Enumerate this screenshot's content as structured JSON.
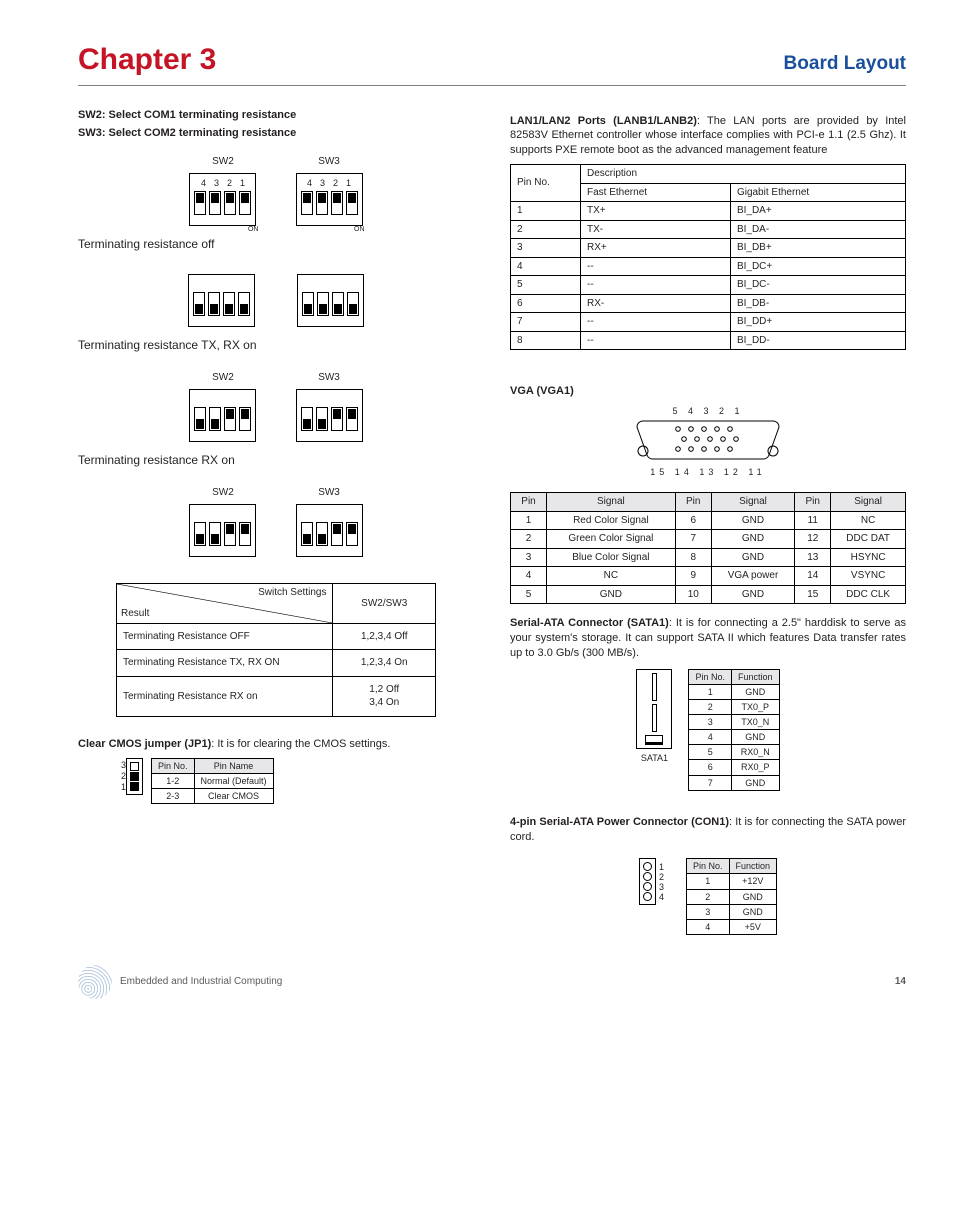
{
  "header": {
    "chapter": "Chapter 3",
    "section": "Board Layout"
  },
  "left": {
    "sw2_heading": "SW2:  Select COM1 terminating resistance",
    "sw3_heading": "SW3:  Select COM2 terminating resistance",
    "sw2_label": "SW2",
    "sw3_label": "SW3",
    "dip_numbers": [
      "4",
      "3",
      "2",
      "1"
    ],
    "on_label": "ON",
    "states": {
      "all_off": {
        "title": "Terminating resistance off",
        "positions": [
          "off",
          "off",
          "off",
          "off"
        ]
      },
      "all_on": {
        "title": "Terminating resistance  TX, RX on",
        "positions": [
          "on",
          "on",
          "on",
          "on"
        ]
      },
      "rx_on": {
        "title": "Terminating resistance RX on",
        "positions": [
          "on",
          "on",
          "off",
          "off"
        ]
      }
    },
    "switch_table": {
      "header_left_top": "Switch Settings",
      "header_left_bottom": "Result",
      "header_right": "SW2/SW3",
      "rows": [
        {
          "label": "Terminating Resistance OFF",
          "val": "1,2,3,4 Off"
        },
        {
          "label": "Terminating Resistance TX, RX ON",
          "val": "1,2,3,4 On"
        },
        {
          "label": "Terminating Resistance RX on",
          "val": "1,2 Off\n3,4 On"
        }
      ]
    },
    "clear_cmos": {
      "text": "Clear CMOS jumper (JP1): It is for clearing the CMOS settings.",
      "bold_until": "Clear CMOS jumper (JP1)",
      "plain": ": It is for clearing the CMOS settings.",
      "nums": [
        "3",
        "2",
        "1"
      ],
      "table": {
        "headers": [
          "Pin No.",
          "Pin Name"
        ],
        "rows": [
          [
            "1-2",
            "Normal (Default)"
          ],
          [
            "2-3",
            "Clear CMOS"
          ]
        ]
      }
    }
  },
  "right": {
    "lan": {
      "bold": "LAN1/LAN2 Ports (LANB1/LANB2)",
      "rest": ": The LAN ports are provided by Intel 82583V Ethernet controller whose interface complies with PCI-e 1.1 (2.5 Ghz). It supports PXE remote boot as the advanced management feature",
      "headers": [
        "Pin No.",
        "Description"
      ],
      "subheaders": [
        "Fast Ethernet",
        "Gigabit Ethernet"
      ],
      "rows": [
        [
          "1",
          "TX+",
          "BI_DA+"
        ],
        [
          "2",
          "TX-",
          "BI_DA-"
        ],
        [
          "3",
          "RX+",
          "BI_DB+"
        ],
        [
          "4",
          "--",
          "BI_DC+"
        ],
        [
          "5",
          "--",
          "BI_DC-"
        ],
        [
          "6",
          "RX-",
          "BI_DB-"
        ],
        [
          "7",
          "--",
          "BI_DD+"
        ],
        [
          "8",
          "--",
          "BI_DD-"
        ]
      ]
    },
    "vga": {
      "title": "VGA (VGA1)",
      "top_nums": "5 4 3 2 1",
      "bottom_nums": "15 14 13 12 11",
      "headers": [
        "Pin",
        "Signal",
        "Pin",
        "Signal",
        "Pin",
        "Signal"
      ],
      "rows": [
        [
          "1",
          "Red Color Signal",
          "6",
          "GND",
          "11",
          "NC"
        ],
        [
          "2",
          "Green Color Signal",
          "7",
          "GND",
          "12",
          "DDC DAT"
        ],
        [
          "3",
          "Blue Color Signal",
          "8",
          "GND",
          "13",
          "HSYNC"
        ],
        [
          "4",
          "NC",
          "9",
          "VGA power",
          "14",
          "VSYNC"
        ],
        [
          "5",
          "GND",
          "10",
          "GND",
          "15",
          "DDC CLK"
        ]
      ]
    },
    "sata": {
      "bold": "Serial-ATA Connector (SATA1)",
      "rest": ": It is for connecting a 2.5\" harddisk to serve as your system's storage.  It can support SATA II which features Data transfer rates up to 3.0 Gb/s (300 MB/s).",
      "label": "SATA1",
      "headers": [
        "Pin No.",
        "Function"
      ],
      "rows": [
        [
          "1",
          "GND"
        ],
        [
          "2",
          "TX0_P"
        ],
        [
          "3",
          "TX0_N"
        ],
        [
          "4",
          "GND"
        ],
        [
          "5",
          "RX0_N"
        ],
        [
          "6",
          "RX0_P"
        ],
        [
          "7",
          "GND"
        ]
      ]
    },
    "sata_pwr": {
      "bold": "4-pin Serial-ATA Power Connector (CON1)",
      "rest": ":  It is for connecting the SATA power cord.",
      "nums": [
        "1",
        "2",
        "3",
        "4"
      ],
      "headers": [
        "Pin No.",
        "Function"
      ],
      "rows": [
        [
          "1",
          "+12V"
        ],
        [
          "2",
          "GND"
        ],
        [
          "3",
          "GND"
        ],
        [
          "4",
          "+5V"
        ]
      ]
    }
  },
  "footer": {
    "text": "Embedded and Industrial Computing",
    "page": "14"
  },
  "colors": {
    "chapter_red": "#c41425",
    "section_blue": "#1b4f9c",
    "rule_gray": "#808083",
    "header_bg": "#e7e7e9"
  }
}
